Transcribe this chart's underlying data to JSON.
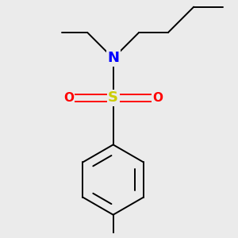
{
  "background_color": "#ebebeb",
  "atom_colors": {
    "S": "#cccc00",
    "N": "#0000ff",
    "O": "#ff0000",
    "C": "#000000"
  },
  "bond_color": "#000000",
  "figsize": [
    3.0,
    3.0
  ],
  "dpi": 100
}
